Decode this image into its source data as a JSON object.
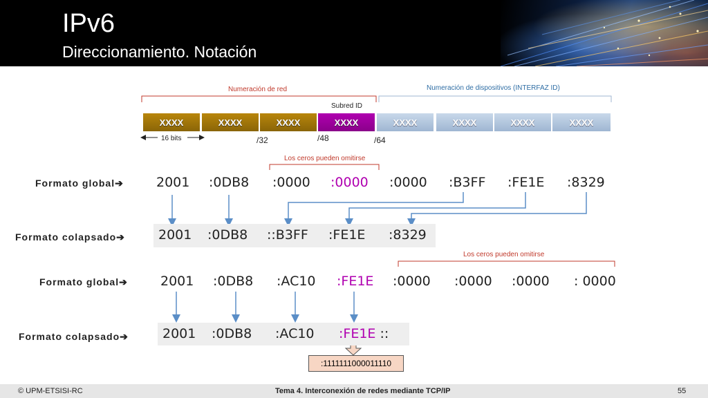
{
  "header": {
    "title": "IPv6",
    "subtitle": "Direccionamiento. Notación"
  },
  "diagram": {
    "network_label": "Numeración de red",
    "device_label": "Numeración de dispositivos (INTERFAZ ID)",
    "subnet_label": "Subred ID",
    "segments": [
      "XXXX",
      "XXXX",
      "XXXX",
      "XXXX",
      "XXXX",
      "XXXX",
      "XXXX",
      "XXXX"
    ],
    "bits_label": "16 bits",
    "markers": [
      "/32",
      "/48",
      "/64"
    ]
  },
  "row1": {
    "omit_note": "Los ceros pueden omitirse",
    "global_label": "Formato global",
    "global_cells": [
      "2001",
      ":0DB8",
      ":0000",
      ":0000",
      ":0000",
      ":B3FF",
      ":FE1E",
      ":8329"
    ],
    "collapsed_label": "Formato colapsado",
    "collapsed_cells": [
      "2001",
      ":0DB8",
      "::B3FF",
      ":FE1E",
      ":8329"
    ]
  },
  "row2": {
    "omit_note": "Los ceros pueden omitirse",
    "global_label": "Formato global",
    "global_cells": [
      "2001",
      ":0DB8",
      ":AC10",
      ":FE1E",
      ":0000",
      ":0000",
      ":0000",
      ": 0000"
    ],
    "collapsed_label": "Formato colapsado",
    "collapsed_cells": [
      "2001",
      ":0DB8",
      ":AC10",
      ":FE1E",
      " ::"
    ],
    "binary": ":1111111000011110"
  },
  "footer": {
    "left": "© UPM-ETSISI-RC",
    "center": "Tema 4. Interconexión de redes mediante TCP/IP",
    "page": "55"
  },
  "colors": {
    "accent_gold": "#b8860b",
    "accent_magenta": "#b000b0",
    "accent_blue": "#2e6da4",
    "accent_red": "#c0392b"
  }
}
